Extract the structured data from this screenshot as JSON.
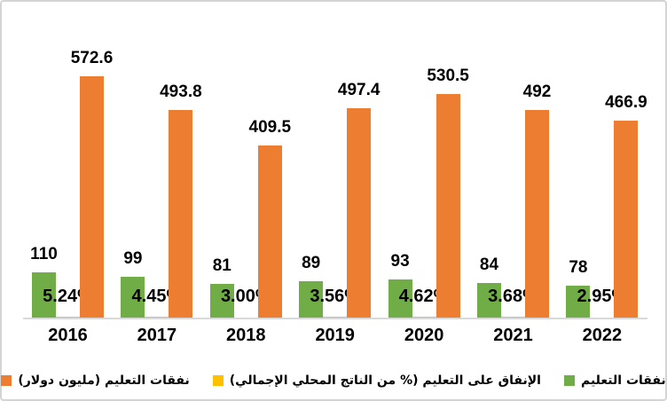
{
  "chart_data": {
    "type": "bar",
    "categories": [
      "2016",
      "2017",
      "2018",
      "2019",
      "2020",
      "2021",
      "2022"
    ],
    "series": [
      {
        "name": "نفقات التعليم",
        "color": "#70AD47",
        "values": [
          110,
          99,
          81,
          89,
          93,
          84,
          78
        ],
        "labels": [
          "110",
          "99",
          "81",
          "89",
          "93",
          "84",
          "78"
        ],
        "label_placement": "above-bar"
      },
      {
        "name": "الإنفاق على التعليم (% من الناتج المحلي الإجمالي)",
        "color": "#FFC000",
        "values": [
          5.24,
          4.45,
          3.0,
          3.56,
          4.62,
          3.68,
          2.95
        ],
        "labels": [
          "5.24%",
          "4.45%",
          "3.00%",
          "3.56%",
          "4.62%",
          "3.68%",
          "2.95%"
        ],
        "label_placement": "near-baseline"
      },
      {
        "name": "نفقات التعليم (مليون دولار)",
        "color": "#ED7D31",
        "values": [
          572.6,
          493.8,
          409.5,
          497.4,
          530.5,
          492,
          466.9
        ],
        "labels": [
          "572.6",
          "493.8",
          "409.5",
          "497.4",
          "530.5",
          "492",
          "466.9"
        ],
        "label_placement": "above-bar"
      }
    ],
    "title": "",
    "xlabel": "",
    "ylabel": "",
    "ylim": [
      0,
      600
    ],
    "grid": false,
    "y_axis_visible": false,
    "legend_position": "bottom",
    "text_direction": "rtl"
  },
  "colors": {
    "axis_line": "#d9d9d9",
    "frame_border": "#d4d4d4",
    "label_text": "#000000",
    "background": "#ffffff"
  }
}
